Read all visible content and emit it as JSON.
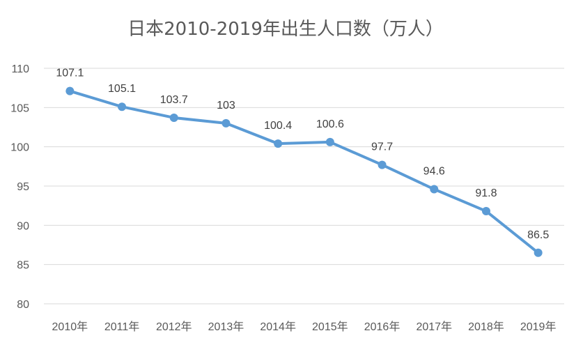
{
  "chart_data": {
    "type": "line",
    "title": "日本2010-2019年出生人口数（万人）",
    "categories": [
      "2010年",
      "2011年",
      "2012年",
      "2013年",
      "2014年",
      "2015年",
      "2016年",
      "2017年",
      "2018年",
      "2019年"
    ],
    "series": [
      {
        "values": [
          107.1,
          105.1,
          103.7,
          103,
          100.4,
          100.6,
          97.7,
          94.6,
          91.8,
          86.5
        ],
        "data_labels": [
          "107.1",
          "105.1",
          "103.7",
          "103",
          "100.4",
          "100.6",
          "97.7",
          "94.6",
          "91.8",
          "86.5"
        ]
      }
    ],
    "yticks": [
      "80",
      "85",
      "90",
      "95",
      "100",
      "105",
      "110"
    ],
    "ylim": [
      80,
      110
    ],
    "grid": true,
    "legend": "none",
    "line_color": "#5b9bd5",
    "xlabel": "",
    "ylabel": ""
  }
}
